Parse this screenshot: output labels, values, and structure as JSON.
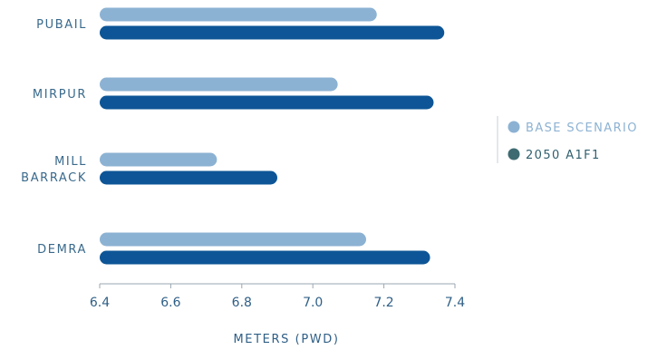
{
  "chart_data": {
    "type": "bar",
    "orientation": "horizontal",
    "categories": [
      [
        "PUBAIL"
      ],
      [
        "MIRPUR"
      ],
      [
        "MILL",
        "BARRACK"
      ],
      [
        "DEMRA"
      ]
    ],
    "series": [
      {
        "name": "BASE SCENARIO",
        "values": [
          7.18,
          7.07,
          6.73,
          7.15
        ],
        "color": "#8cb2d3"
      },
      {
        "name": "2050 A1F1",
        "values": [
          7.37,
          7.34,
          6.9,
          7.33
        ],
        "color": "#0d5596"
      }
    ],
    "xlabel": "METERS (PWD)",
    "ylabel": "",
    "xlim": [
      6.4,
      7.4
    ],
    "xticks": [
      "6.4",
      "6.6",
      "6.8",
      "7.0",
      "7.2",
      "7.4"
    ],
    "grid": false,
    "legend_position": "right",
    "legend": {
      "text_colors": [
        "#8cb2d3",
        "#2f5f6e"
      ],
      "marker_colors": [
        "#8cb2d3",
        "#3e6b72"
      ]
    }
  }
}
